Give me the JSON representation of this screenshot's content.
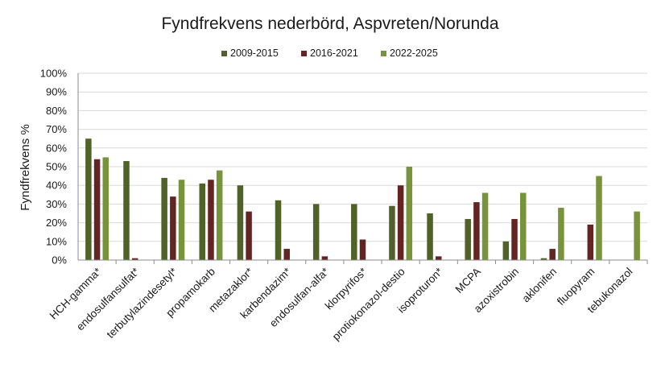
{
  "chart_data": {
    "type": "bar",
    "title": "Fyndfrekvens  nederbörd, Aspvreten/Norunda",
    "xlabel": "",
    "ylabel": "Fyndfrekvens %",
    "ylim": [
      0,
      100
    ],
    "yticks": [
      "0%",
      "10%",
      "20%",
      "30%",
      "40%",
      "50%",
      "60%",
      "70%",
      "80%",
      "90%",
      "100%"
    ],
    "grid": true,
    "legend_position": "top",
    "categories": [
      "HCH-gamma*",
      "endosulfansulfat*",
      "terbutylazindesetyl*",
      "propamokarb",
      "metazaklor*",
      "karbendazim*",
      "endosulfan-alfa*",
      "klorpyrifos*",
      "protiokonazol-destio",
      "isoproturon*",
      "MCPA",
      "azoxistrobin",
      "aklonifen",
      "fluopyram",
      "tebukonazol"
    ],
    "series": [
      {
        "name": "2009-2015",
        "color": "#4f6228",
        "values": [
          65,
          53,
          44,
          41,
          40,
          32,
          30,
          30,
          29,
          25,
          22,
          10,
          1,
          0,
          0
        ]
      },
      {
        "name": "2016-2021",
        "color": "#632523",
        "values": [
          54,
          1,
          34,
          43,
          26,
          6,
          2,
          11,
          40,
          2,
          31,
          22,
          6,
          19,
          0
        ]
      },
      {
        "name": "2022-2025",
        "color": "#77933c",
        "values": [
          55,
          0,
          43,
          48,
          0,
          0,
          0,
          0,
          50,
          0,
          36,
          36,
          28,
          45,
          26
        ]
      }
    ]
  }
}
